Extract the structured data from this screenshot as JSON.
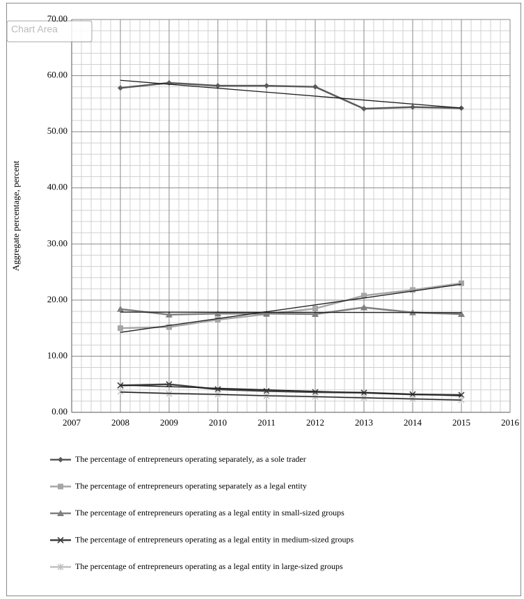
{
  "chart_data": {
    "type": "line",
    "tooltip": "Chart Area",
    "y_label": "Aggregate percentage, percent",
    "x": [
      2008,
      2009,
      2010,
      2011,
      2012,
      2013,
      2014,
      2015
    ],
    "series": [
      {
        "name": "The percentage of entrepreneurs operating separately, as a sole trader",
        "color": "#595959",
        "marker": "diamond",
        "values": [
          57.8,
          58.7,
          58.2,
          58.2,
          58.0,
          54.1,
          54.4,
          54.2
        ]
      },
      {
        "name": "The percentage of entrepreneurs operating separately as a legal entity",
        "color": "#a6a6a6",
        "marker": "square",
        "values": [
          15.0,
          15.2,
          16.5,
          17.5,
          18.5,
          20.8,
          21.8,
          23.0
        ]
      },
      {
        "name": "The percentage of entrepreneurs operating as a legal entity in small-sized groups",
        "color": "#7f7f7f",
        "marker": "triangle",
        "values": [
          18.4,
          17.4,
          17.6,
          17.6,
          17.5,
          18.7,
          17.8,
          17.5
        ]
      },
      {
        "name": "The percentage of entrepreneurs operating as a legal entity in medium-sized groups",
        "color": "#404040",
        "marker": "x",
        "values": [
          4.8,
          5.0,
          4.1,
          3.8,
          3.6,
          3.5,
          3.2,
          3.1
        ]
      },
      {
        "name": "The percentage of entrepreneurs operating as a legal entity in large-sized groups",
        "color": "#bfbfbf",
        "marker": "star",
        "values": [
          3.7,
          3.3,
          3.2,
          2.9,
          2.8,
          2.6,
          2.4,
          2.2
        ]
      }
    ],
    "xlim": [
      2007,
      2016
    ],
    "xticks": [
      2007,
      2008,
      2009,
      2010,
      2011,
      2012,
      2013,
      2014,
      2015,
      2016
    ],
    "ylim": [
      0,
      70
    ],
    "yticks": [
      {
        "value": 0,
        "label": "0.00"
      },
      {
        "value": 10,
        "label": "10.00"
      },
      {
        "value": 20,
        "label": "20.00"
      },
      {
        "value": 30,
        "label": "30.00"
      },
      {
        "value": 40,
        "label": "40.00"
      },
      {
        "value": 50,
        "label": "50.00"
      },
      {
        "value": 60,
        "label": "60.00"
      },
      {
        "value": 70,
        "label": "70.00"
      }
    ],
    "grid": true,
    "minor_grid": true,
    "trendlines": true,
    "legend": "bottom"
  }
}
